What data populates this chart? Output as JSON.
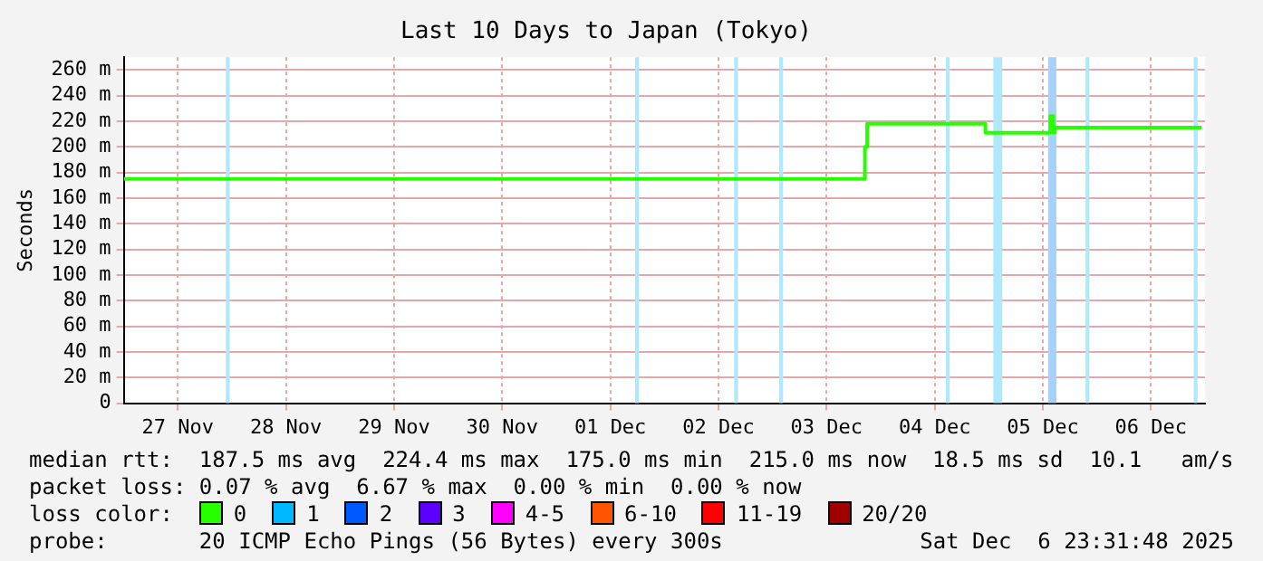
{
  "chart_data": {
    "type": "step",
    "title": "Last 10 Days to Japan (Tokyo)",
    "ylabel": "Seconds",
    "legend_title": "loss color:",
    "legend": "bottom",
    "grid": true,
    "marker": "none",
    "xlim": [
      "2025-11-27T00:00",
      "2025-12-07T00:00"
    ],
    "xticks": [
      {
        "value": "2025-11-27T12:00",
        "label": "27 Nov"
      },
      {
        "value": "2025-11-28T12:00",
        "label": "28 Nov"
      },
      {
        "value": "2025-11-29T12:00",
        "label": "29 Nov"
      },
      {
        "value": "2025-11-30T12:00",
        "label": "30 Nov"
      },
      {
        "value": "2025-12-01T12:00",
        "label": "01 Dec"
      },
      {
        "value": "2025-12-02T12:00",
        "label": "02 Dec"
      },
      {
        "value": "2025-12-03T12:00",
        "label": "03 Dec"
      },
      {
        "value": "2025-12-04T12:00",
        "label": "04 Dec"
      },
      {
        "value": "2025-12-05T12:00",
        "label": "05 Dec"
      },
      {
        "value": "2025-12-06T12:00",
        "label": "06 Dec"
      }
    ],
    "ylim": [
      0,
      270
    ],
    "yticks": [
      0,
      {
        "value": 20,
        "label": "20 m"
      },
      {
        "value": 40,
        "label": "40 m"
      },
      {
        "value": 60,
        "label": "60 m"
      },
      {
        "value": 80,
        "label": "80 m"
      },
      {
        "value": 100,
        "label": "100 m"
      },
      {
        "value": 120,
        "label": "120 m"
      },
      {
        "value": 140,
        "label": "140 m"
      },
      {
        "value": 160,
        "label": "160 m"
      },
      {
        "value": 180,
        "label": "180 m"
      },
      {
        "value": 200,
        "label": "200 m"
      },
      {
        "value": 220,
        "label": "220 m"
      },
      {
        "value": 240,
        "label": "240 m"
      },
      {
        "value": 260,
        "label": "260 m"
      }
    ],
    "series": [
      {
        "name": "0",
        "color": "#26ff00",
        "x": [
          "2025-11-27T00:00",
          "2025-12-03T20:30",
          "2025-12-03T21:00",
          "2025-12-04T23:15",
          "2025-12-05T13:40",
          "2025-12-05T14:20",
          "2025-12-05T14:40",
          "2025-12-06T23:15"
        ],
        "values": [
          175,
          200,
          218,
          211,
          224,
          211,
          215,
          215
        ]
      },
      {
        "name": "1",
        "color": "#00b8ff"
      },
      {
        "name": "2",
        "color": "#0059ff"
      },
      {
        "name": "3",
        "color": "#5e00ff"
      },
      {
        "name": "4-5",
        "color": "#ff00ff"
      },
      {
        "name": "6-10",
        "color": "#ff5500"
      },
      {
        "name": "11-19",
        "color": "#ff0000"
      },
      {
        "name": "20/20",
        "color": "#a10000"
      }
    ],
    "bands": [
      {
        "axis": "x",
        "from": "2025-11-27T22:40",
        "to": "2025-11-27T23:30",
        "color": "#aee8fa"
      },
      {
        "axis": "x",
        "from": "2025-12-01T17:30",
        "to": "2025-12-01T18:20",
        "color": "#aee8fa"
      },
      {
        "axis": "x",
        "from": "2025-12-02T15:30",
        "to": "2025-12-02T16:20",
        "color": "#aee8fa"
      },
      {
        "axis": "x",
        "from": "2025-12-03T01:30",
        "to": "2025-12-03T02:20",
        "color": "#aee8fa"
      },
      {
        "axis": "x",
        "from": "2025-12-04T14:30",
        "to": "2025-12-04T15:20",
        "color": "#aee8fa"
      },
      {
        "axis": "x",
        "from": "2025-12-05T01:00",
        "to": "2025-12-05T03:00",
        "color": "#aee8fa"
      },
      {
        "axis": "x",
        "from": "2025-12-05T13:10",
        "to": "2025-12-05T15:00",
        "color": "#a4d2fa"
      },
      {
        "axis": "x",
        "from": "2025-12-05T21:30",
        "to": "2025-12-05T22:20",
        "color": "#aee8fa"
      },
      {
        "axis": "x",
        "from": "2025-12-06T21:30",
        "to": "2025-12-06T22:20",
        "color": "#aee8fa"
      }
    ],
    "annotations": [
      "median rtt:  187.5 ms avg  224.4 ms max  175.0 ms min  215.0 ms now  18.5 ms sd  10.1   am/s",
      "packet loss: 0.07 % avg  6.67 % max  0.00 % min  0.00 % now",
      "probe:       20 ICMP Echo Pings (56 Bytes) every 300s",
      "Sat Dec  6 23:31:48 2025"
    ]
  }
}
